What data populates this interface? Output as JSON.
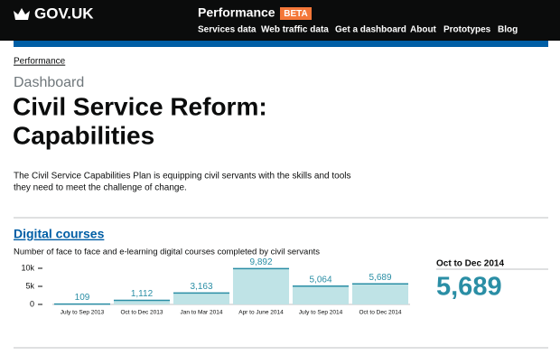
{
  "header": {
    "logo": "GOV.UK",
    "product": "Performance",
    "tag": "BETA",
    "nav": [
      "Services data",
      "Web traffic data",
      "Get a dashboard",
      "About",
      "Prototypes",
      "Blog"
    ]
  },
  "breadcrumb": "Performance",
  "page": {
    "kicker": "Dashboard",
    "title": [
      "Civil Service Reform:",
      "Capabilities"
    ],
    "description": [
      "The Civil Service Capabilities Plan is equipping civil servants with the skills and tools",
      "they need to meet the challenge of change."
    ],
    "section_title": "Digital courses",
    "latest": {
      "period": "Oct to Dec 2014",
      "value": "5,689"
    }
  },
  "chart_data": {
    "type": "bar",
    "title": "Number of face to face and e-learning digital courses completed by civil servants",
    "categories": [
      "July to Sep 2013",
      "Oct to Dec 2013",
      "Jan to Mar 2014",
      "Apr to June 2014",
      "July to Sep 2014",
      "Oct to Dec 2014"
    ],
    "values": [
      109,
      1112,
      3163,
      9892,
      5064,
      5689
    ],
    "value_labels": [
      "109",
      "1,112",
      "3,163",
      "9,892",
      "5,064",
      "5,689"
    ],
    "color": "#bfe3e6",
    "ylim": [
      0,
      10000
    ],
    "yticks": [
      0,
      {
        "value": 5000,
        "label": "5k"
      },
      {
        "value": 10000,
        "label": "10k"
      }
    ]
  }
}
